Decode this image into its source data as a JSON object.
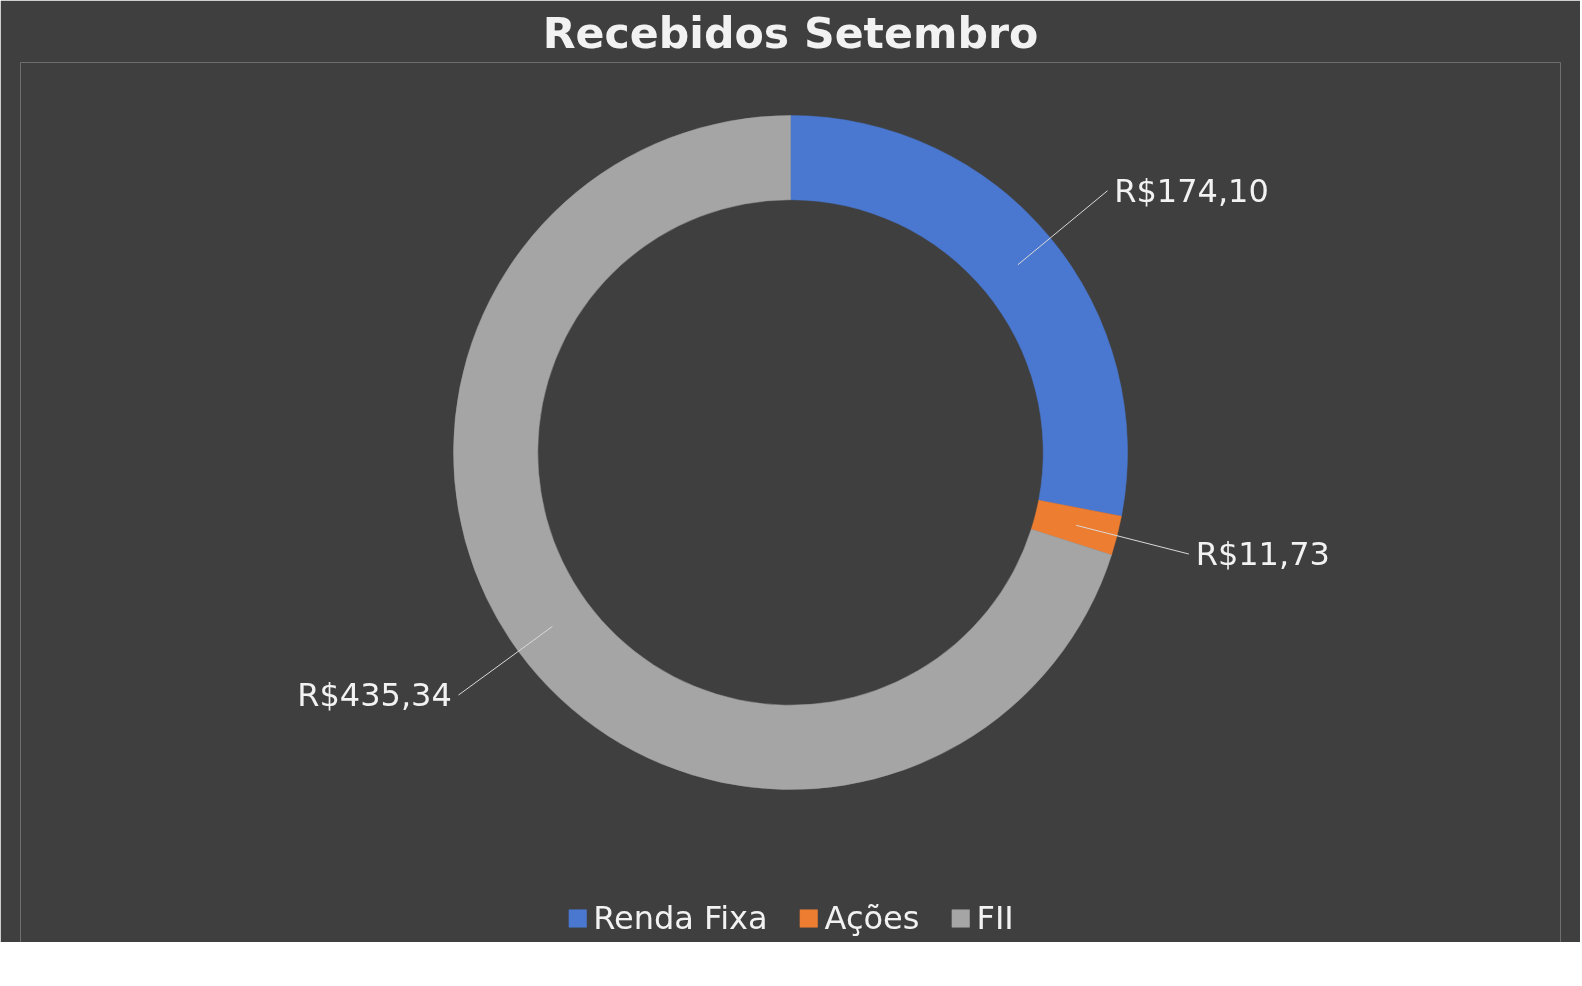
{
  "chart_data": {
    "type": "donut",
    "title": "Recebidos Setembro",
    "categories": [
      "Renda Fixa",
      "Ações",
      "FII"
    ],
    "values": [
      174.1,
      11.73,
      435.34
    ],
    "colors": [
      "#4a78d0",
      "#ed7d31",
      "#a5a5a5"
    ],
    "value_labels": [
      "R$174,10",
      "R$11,73",
      "R$435,34"
    ],
    "legend": "bottom"
  }
}
